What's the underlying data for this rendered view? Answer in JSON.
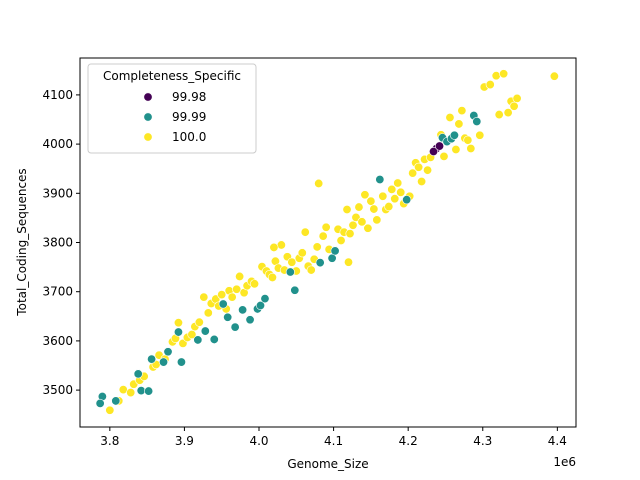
{
  "chart_data": {
    "type": "scatter",
    "title": "",
    "xlabel": "Genome_Size",
    "ylabel": "Total_Coding_Sequences",
    "x_offset_label": "1e6",
    "xlim": [
      3.76,
      4.425
    ],
    "ylim": [
      3425,
      4175
    ],
    "x_ticks": [
      3.8,
      3.9,
      4.0,
      4.1,
      4.2,
      4.3,
      4.4
    ],
    "x_tick_labels": [
      "3.8",
      "3.9",
      "4.0",
      "4.1",
      "4.2",
      "4.3",
      "4.4"
    ],
    "y_ticks": [
      3500,
      3600,
      3700,
      3800,
      3900,
      4000,
      4100
    ],
    "y_tick_labels": [
      "3500",
      "3600",
      "3700",
      "3800",
      "3900",
      "4000",
      "4100"
    ],
    "grid": false,
    "legend": {
      "title": "Completeness_Specific",
      "placement": "upper-left",
      "entries": [
        "99.98",
        "99.99",
        "100.0"
      ]
    },
    "colors": {
      "99.98": "#440154",
      "99.99": "#21918c",
      "100.0": "#fde725"
    },
    "series": [
      {
        "name": "99.98",
        "x": [
          4.238,
          4.234,
          4.242
        ],
        "y": [
          3991,
          3985,
          3996
        ]
      },
      {
        "name": "99.99",
        "x": [
          3.79,
          3.787,
          3.808,
          3.842,
          3.838,
          3.852,
          3.856,
          3.872,
          3.878,
          3.892,
          3.896,
          3.918,
          3.928,
          3.94,
          3.952,
          3.958,
          3.968,
          3.978,
          3.988,
          3.998,
          4.002,
          4.008,
          4.042,
          4.048,
          4.082,
          4.098,
          4.102,
          4.162,
          4.198,
          4.246,
          4.252,
          4.258,
          4.262,
          4.288,
          4.292
        ],
        "y": [
          3487,
          3473,
          3478,
          3499,
          3533,
          3498,
          3563,
          3557,
          3578,
          3618,
          3557,
          3602,
          3620,
          3603,
          3675,
          3648,
          3628,
          3663,
          3643,
          3665,
          3672,
          3686,
          3740,
          3703,
          3759,
          3768,
          3783,
          3928,
          3887,
          4013,
          4005,
          4011,
          4018,
          4058,
          4046
        ]
      },
      {
        "name": "100.0",
        "x": [
          3.8,
          3.812,
          3.818,
          3.828,
          3.832,
          3.84,
          3.846,
          3.858,
          3.862,
          3.866,
          3.874,
          3.884,
          3.888,
          3.892,
          3.898,
          3.904,
          3.91,
          3.914,
          3.92,
          3.926,
          3.932,
          3.936,
          3.942,
          3.946,
          3.95,
          3.956,
          3.96,
          3.964,
          3.97,
          3.974,
          3.98,
          3.984,
          3.99,
          3.994,
          4.004,
          4.01,
          4.014,
          4.018,
          4.022,
          4.026,
          4.03,
          4.034,
          4.038,
          4.044,
          4.05,
          4.054,
          4.058,
          4.062,
          4.066,
          4.07,
          4.074,
          4.078,
          4.086,
          4.09,
          4.094,
          4.106,
          4.11,
          4.114,
          4.118,
          4.122,
          4.126,
          4.13,
          4.134,
          4.138,
          4.142,
          4.146,
          4.15,
          4.154,
          4.158,
          4.166,
          4.17,
          4.174,
          4.178,
          4.182,
          4.186,
          4.19,
          4.194,
          4.202,
          4.206,
          4.21,
          4.214,
          4.218,
          4.222,
          4.226,
          4.23,
          4.244,
          4.248,
          4.256,
          4.264,
          4.268,
          4.272,
          4.276,
          4.28,
          4.284,
          4.296,
          4.302,
          4.31,
          4.318,
          4.322,
          4.328,
          4.334,
          4.338,
          4.342,
          4.346,
          4.396,
          4.08,
          4.02,
          4.12
        ],
        "y": [
          3459,
          3478,
          3501,
          3495,
          3512,
          3520,
          3528,
          3547,
          3552,
          3571,
          3563,
          3598,
          3605,
          3637,
          3595,
          3607,
          3613,
          3629,
          3638,
          3689,
          3657,
          3676,
          3685,
          3671,
          3694,
          3665,
          3702,
          3689,
          3705,
          3731,
          3698,
          3712,
          3721,
          3716,
          3751,
          3742,
          3735,
          3729,
          3762,
          3748,
          3795,
          3744,
          3771,
          3760,
          3742,
          3768,
          3779,
          3821,
          3752,
          3744,
          3766,
          3791,
          3813,
          3831,
          3786,
          3827,
          3804,
          3821,
          3867,
          3818,
          3835,
          3851,
          3872,
          3842,
          3897,
          3829,
          3884,
          3868,
          3846,
          3894,
          3867,
          3873,
          3908,
          3889,
          3921,
          3902,
          3879,
          3894,
          3941,
          3962,
          3953,
          3924,
          3969,
          3947,
          3973,
          4019,
          3975,
          4054,
          3989,
          4041,
          4068,
          4012,
          4008,
          3991,
          4018,
          4116,
          4121,
          4139,
          4060,
          4143,
          4064,
          4087,
          4077,
          4093,
          4138,
          3920,
          3790,
          3760
        ]
      }
    ]
  }
}
